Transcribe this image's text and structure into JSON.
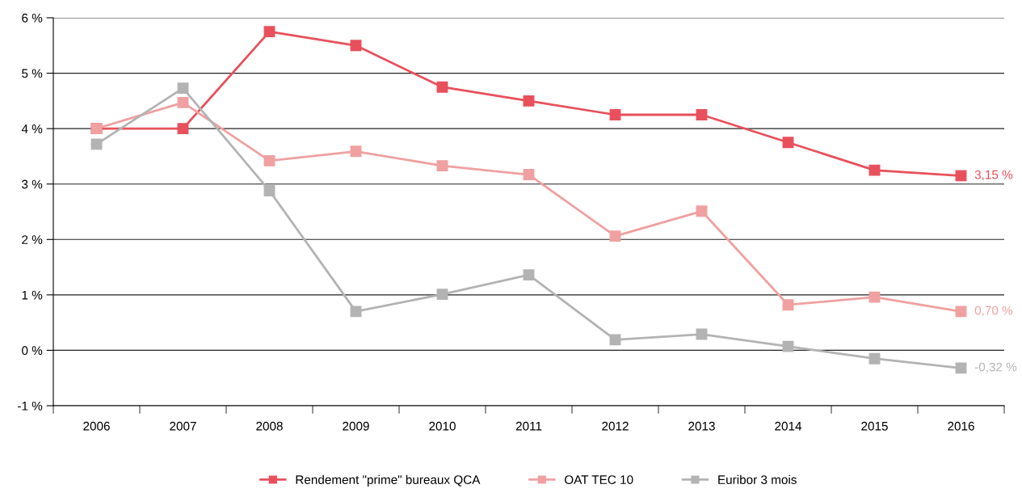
{
  "chart_data": {
    "type": "line",
    "categories": [
      "2006",
      "2007",
      "2008",
      "2009",
      "2010",
      "2011",
      "2012",
      "2013",
      "2014",
      "2015",
      "2016"
    ],
    "series": [
      {
        "name": "Rendement \"prime\" bureaux QCA",
        "color": "#e8505b",
        "values": [
          4.0,
          4.0,
          5.75,
          5.5,
          4.75,
          4.5,
          4.25,
          4.25,
          3.75,
          3.25,
          3.15
        ],
        "value_labels": [
          null,
          null,
          null,
          null,
          null,
          null,
          null,
          null,
          null,
          null,
          "3,15 %"
        ]
      },
      {
        "name": "OAT TEC 10",
        "color": "#f0a0a0",
        "values": [
          4.0,
          4.47,
          3.42,
          3.59,
          3.33,
          3.17,
          2.06,
          2.51,
          0.82,
          0.96,
          0.7
        ],
        "value_labels": [
          null,
          null,
          null,
          null,
          null,
          null,
          null,
          null,
          null,
          null,
          "0,70 %"
        ]
      },
      {
        "name": "Euribor 3 mois",
        "color": "#b3b3b3",
        "values": [
          3.72,
          4.73,
          2.88,
          0.7,
          1.01,
          1.36,
          0.19,
          0.29,
          0.07,
          -0.15,
          -0.32
        ],
        "value_labels": [
          null,
          null,
          null,
          null,
          null,
          null,
          null,
          null,
          null,
          null,
          "-0,32 %"
        ]
      }
    ],
    "ylim": [
      -1,
      6
    ],
    "yticks": [
      {
        "value": -1,
        "label": "-1 %"
      },
      {
        "value": 0,
        "label": "0 %"
      },
      {
        "value": 1,
        "label": "1 %"
      },
      {
        "value": 2,
        "label": "2 %"
      },
      {
        "value": 3,
        "label": "3 %"
      },
      {
        "value": 4,
        "label": "4 %"
      },
      {
        "value": 5,
        "label": "5 %"
      },
      {
        "value": 6,
        "label": "6 %"
      }
    ],
    "grid": "y",
    "legend": "bottom",
    "marker": "square",
    "line_style": "solid"
  }
}
